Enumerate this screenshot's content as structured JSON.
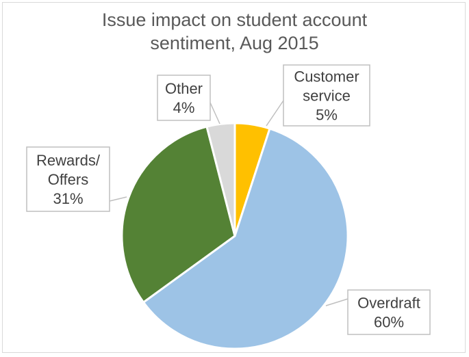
{
  "chart_data": {
    "type": "pie",
    "title_lines": [
      "Issue impact on student account",
      "sentiment, Aug 2015"
    ],
    "slices": [
      {
        "label_lines": [
          "Customer",
          "service"
        ],
        "value": 5,
        "value_label": "5%",
        "color": "#FFC000"
      },
      {
        "label_lines": [
          "Overdraft"
        ],
        "value": 60,
        "value_label": "60%",
        "color": "#9DC3E6"
      },
      {
        "label_lines": [
          "Rewards/",
          "Offers"
        ],
        "value": 31,
        "value_label": "31%",
        "color": "#548235"
      },
      {
        "label_lines": [
          "Other"
        ],
        "value": 4,
        "value_label": "4%",
        "color": "#D9D9D9"
      }
    ],
    "legend": "none",
    "grid": false
  }
}
